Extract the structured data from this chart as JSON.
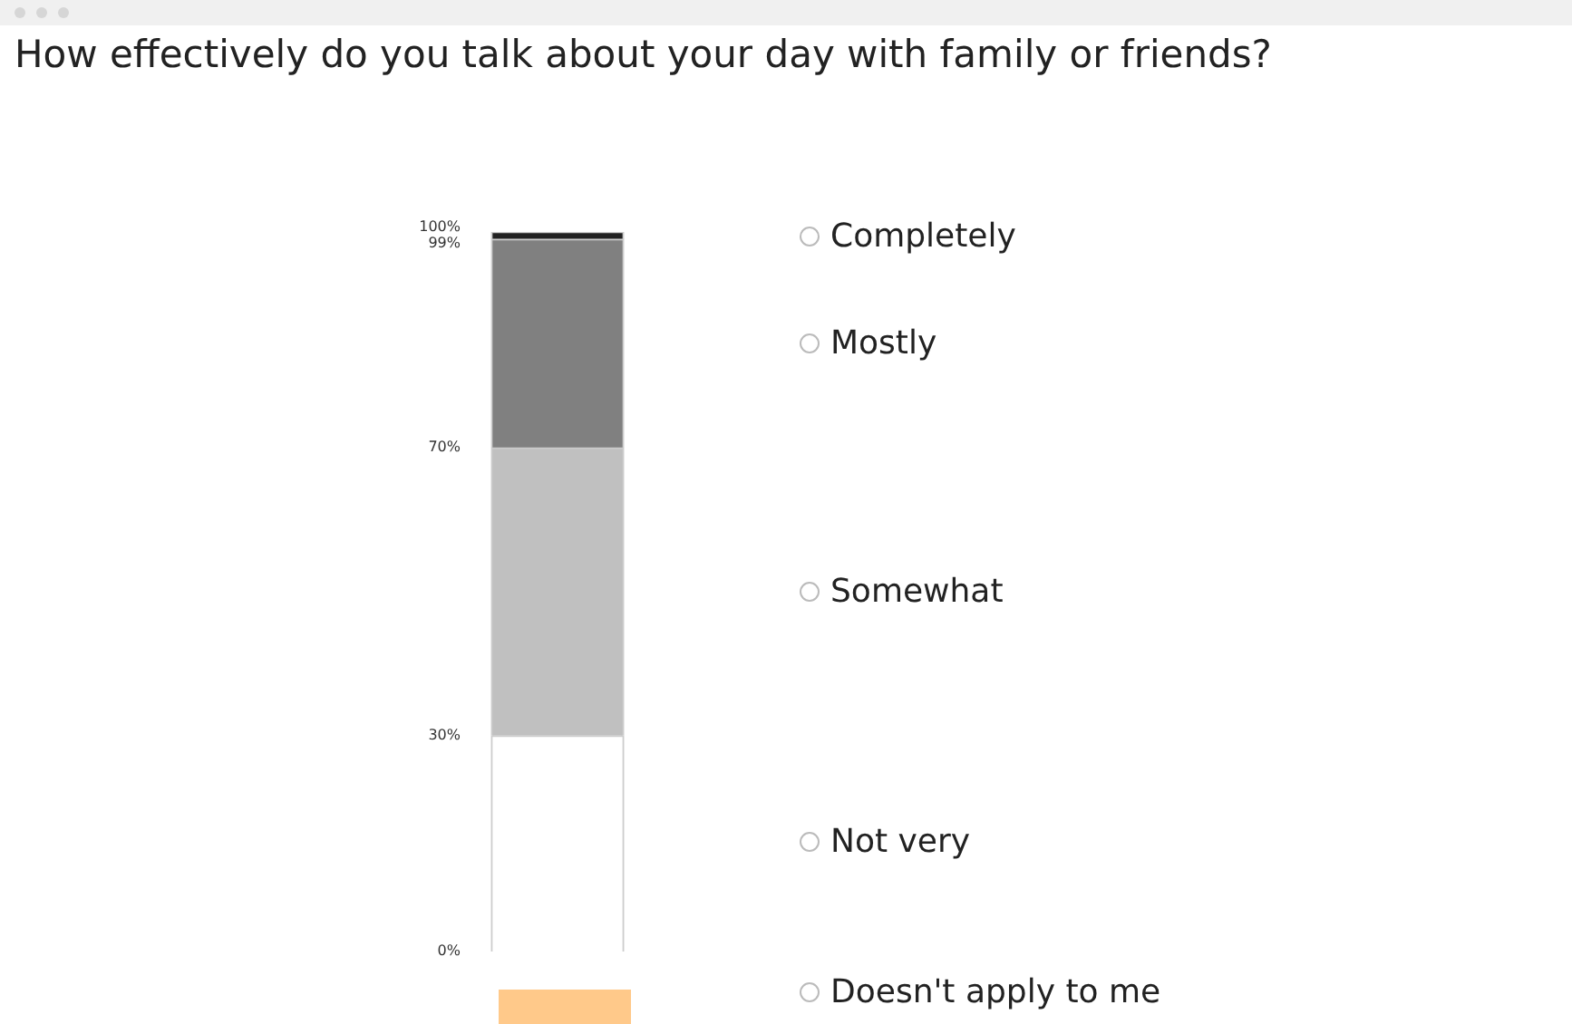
{
  "chart_data": {
    "type": "bar",
    "title": "How effectively do you talk about your day with family or friends?",
    "stacked": true,
    "categories": [
      null
    ],
    "series": [
      {
        "name": "Not very",
        "color": "#ffffff",
        "values": [
          30
        ]
      },
      {
        "name": "Somewhat",
        "color": "#c0c0c0",
        "values": [
          40
        ]
      },
      {
        "name": "Mostly",
        "color": "#808080",
        "values": [
          29
        ]
      },
      {
        "name": "Completely",
        "color": "#222222",
        "values": [
          1
        ]
      }
    ],
    "ylim": [
      0,
      100
    ],
    "yticks": [
      {
        "value": 0,
        "label": "0%"
      },
      {
        "value": 30,
        "label": "30%"
      },
      {
        "value": 70,
        "label": "70%"
      },
      {
        "value": 99,
        "label": "99%"
      },
      {
        "value": 100,
        "label": "100%"
      }
    ],
    "tick_labels": "y",
    "grid": false,
    "legend": false,
    "annotations": [
      "Doesn't apply to me"
    ]
  }
}
